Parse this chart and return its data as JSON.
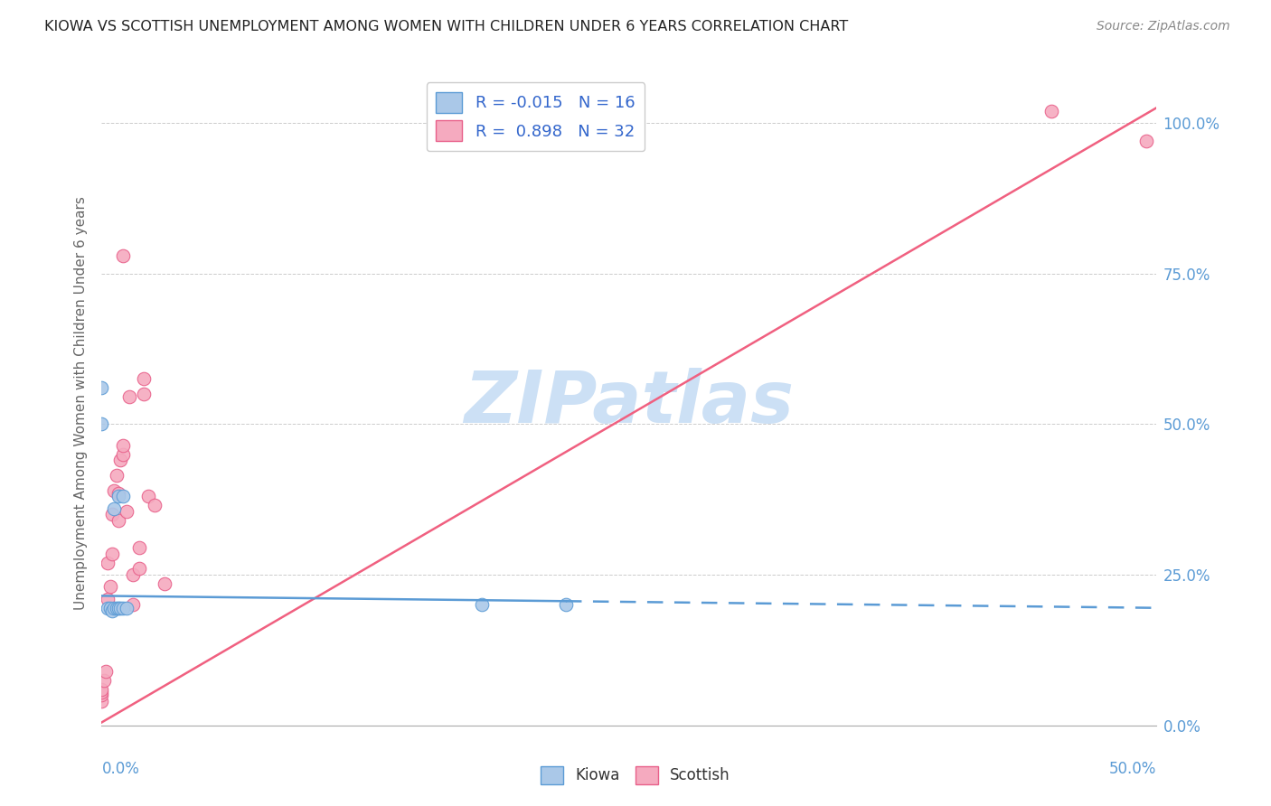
{
  "title": "KIOWA VS SCOTTISH UNEMPLOYMENT AMONG WOMEN WITH CHILDREN UNDER 6 YEARS CORRELATION CHART",
  "source": "Source: ZipAtlas.com",
  "ylabel": "Unemployment Among Women with Children Under 6 years",
  "xlim": [
    0.0,
    0.5
  ],
  "ylim": [
    0.0,
    1.07
  ],
  "kiowa_dot_color": "#aac8e8",
  "kiowa_edge_color": "#5b9bd5",
  "scottish_dot_color": "#f5aabf",
  "scottish_edge_color": "#e8608a",
  "kiowa_line_color": "#5b9bd5",
  "scottish_line_color": "#f06080",
  "kiowa_R": -0.015,
  "kiowa_N": 16,
  "scottish_R": 0.898,
  "scottish_N": 32,
  "watermark": "ZIPatlas",
  "watermark_color": "#cce0f5",
  "ytick_values": [
    0.0,
    0.25,
    0.5,
    0.75,
    1.0
  ],
  "ytick_labels": [
    "0.0%",
    "25.0%",
    "50.0%",
    "75.0%",
    "100.0%"
  ],
  "legend_R_color": "#3366cc",
  "legend_N_color": "#3366cc",
  "kiowa_x": [
    0.0,
    0.0,
    0.003,
    0.004,
    0.005,
    0.006,
    0.006,
    0.007,
    0.008,
    0.008,
    0.009,
    0.01,
    0.01,
    0.012,
    0.18,
    0.22
  ],
  "kiowa_y": [
    0.56,
    0.5,
    0.195,
    0.195,
    0.19,
    0.36,
    0.195,
    0.195,
    0.38,
    0.195,
    0.195,
    0.38,
    0.195,
    0.195,
    0.2,
    0.2
  ],
  "scottish_x": [
    0.0,
    0.0,
    0.0,
    0.0,
    0.001,
    0.002,
    0.003,
    0.003,
    0.004,
    0.005,
    0.005,
    0.006,
    0.007,
    0.008,
    0.008,
    0.009,
    0.01,
    0.01,
    0.01,
    0.012,
    0.013,
    0.015,
    0.015,
    0.018,
    0.018,
    0.02,
    0.02,
    0.022,
    0.025,
    0.03,
    0.45,
    0.495
  ],
  "scottish_y": [
    0.04,
    0.05,
    0.055,
    0.06,
    0.075,
    0.09,
    0.21,
    0.27,
    0.23,
    0.285,
    0.35,
    0.39,
    0.415,
    0.34,
    0.385,
    0.44,
    0.45,
    0.465,
    0.78,
    0.355,
    0.545,
    0.2,
    0.25,
    0.26,
    0.295,
    0.55,
    0.575,
    0.38,
    0.365,
    0.235,
    1.02,
    0.97
  ],
  "kiowa_line_x0": 0.0,
  "kiowa_line_x_solid_end": 0.22,
  "kiowa_line_x1": 0.5,
  "kiowa_line_y0": 0.215,
  "kiowa_line_y1": 0.195,
  "scottish_line_x0": 0.0,
  "scottish_line_x1": 0.5,
  "scottish_line_y0": 0.005,
  "scottish_line_y1": 1.025
}
